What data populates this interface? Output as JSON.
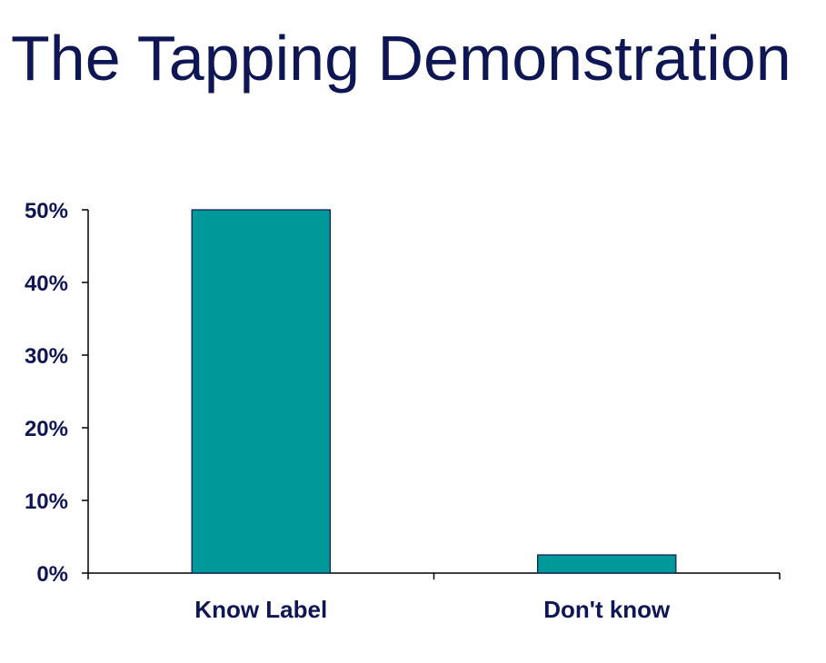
{
  "chart_data": {
    "type": "bar",
    "title": "The Tapping Demonstration",
    "categories": [
      "Know Label",
      "Don't know"
    ],
    "values": [
      50,
      2.5
    ],
    "ylim": [
      0,
      50
    ],
    "yticks": [
      0,
      10,
      20,
      30,
      40,
      50
    ],
    "ytick_labels": [
      "0%",
      "10%",
      "20%",
      "30%",
      "40%",
      "50%"
    ],
    "xlabel": "",
    "ylabel": "",
    "grid": false,
    "colors": {
      "bar": "#009999",
      "bar_stroke": "#0f1654",
      "axis": "#000000",
      "text": "#0f1654"
    }
  }
}
